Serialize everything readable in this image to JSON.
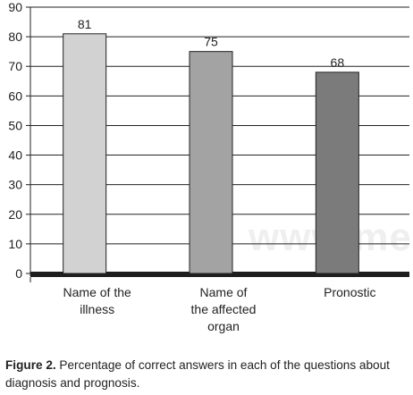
{
  "chart_data": {
    "type": "bar",
    "categories": [
      [
        "Name of the",
        "illness"
      ],
      [
        "Name of",
        "the affected",
        "organ"
      ],
      [
        "Pronostic"
      ]
    ],
    "values": [
      81,
      75,
      68
    ],
    "data_labels": [
      "81",
      "75",
      "68"
    ],
    "ylim": [
      0,
      90
    ],
    "yticks": [
      0,
      10,
      20,
      30,
      40,
      50,
      60,
      70,
      80,
      90
    ],
    "grid": true,
    "bar_colors": [
      "#d2d2d2",
      "#a3a3a3",
      "#7b7b7b"
    ],
    "axis_color": "#222222",
    "floor_color": "#1e1e1e"
  },
  "watermark": "www.medigraphic",
  "caption": {
    "label": "Figure 2.",
    "text": " Percentage of correct answers in each of the questions about diagnosis and prognosis."
  }
}
